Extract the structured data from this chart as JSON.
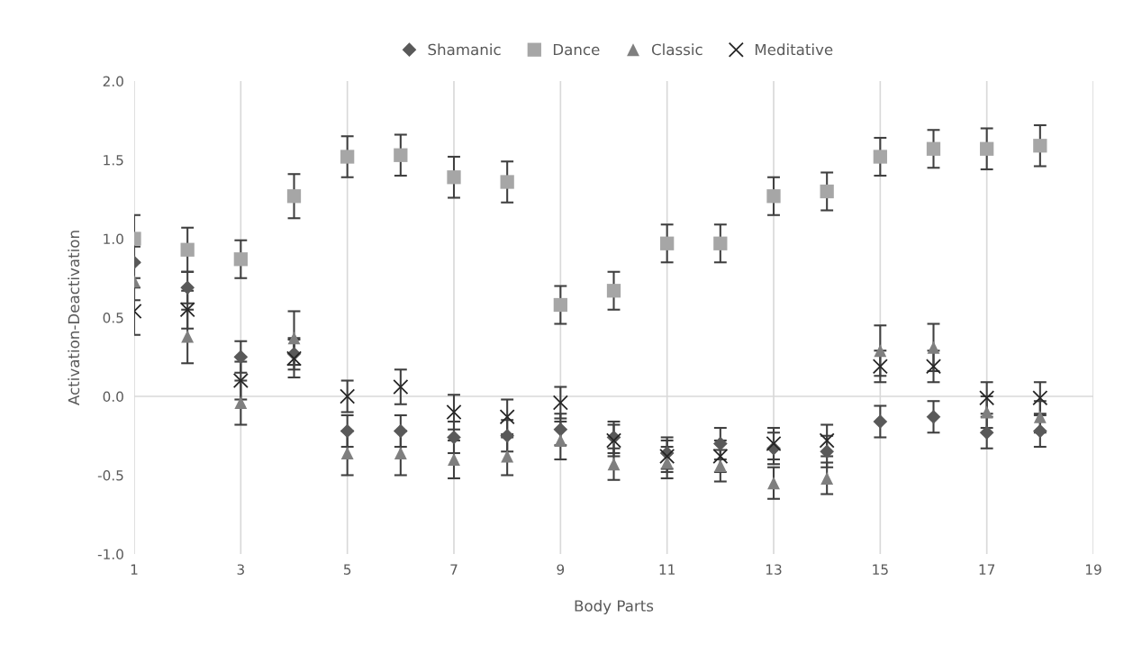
{
  "chart_data": {
    "type": "scatter",
    "xlabel": "Body Parts",
    "ylabel": "Activation-Deactivation",
    "x": [
      1,
      2,
      3,
      4,
      5,
      6,
      7,
      8,
      9,
      10,
      11,
      12,
      13,
      14,
      15,
      16,
      17,
      18
    ],
    "xlim": [
      1,
      19
    ],
    "xticks": [
      1,
      3,
      5,
      7,
      9,
      11,
      13,
      15,
      17,
      19
    ],
    "ylim": [
      -1.0,
      2.0
    ],
    "yticks": [
      {
        "value": -1.0,
        "label": "-1.0"
      },
      {
        "value": -0.5,
        "label": "-0.5"
      },
      {
        "value": 0.0,
        "label": "0.0"
      },
      {
        "value": 0.5,
        "label": "0.5"
      },
      {
        "value": 1.0,
        "label": "1.0"
      },
      {
        "value": 1.5,
        "label": "1.5"
      },
      {
        "value": 2.0,
        "label": "2.0"
      }
    ],
    "grid": "x",
    "legend": "top",
    "ref_lines": [
      {
        "axis": "y",
        "value": 0,
        "color": "#d9d9d9"
      }
    ],
    "series": [
      {
        "name": "Shamanic",
        "color": "#595959",
        "marker": "diamond",
        "values": [
          0.85,
          0.69,
          0.25,
          0.27,
          -0.22,
          -0.22,
          -0.26,
          -0.25,
          -0.21,
          -0.26,
          -0.36,
          -0.3,
          -0.33,
          -0.35,
          -0.16,
          -0.13,
          -0.23,
          -0.22
        ],
        "errors": [
          0.1,
          0.1,
          0.1,
          0.1,
          0.1,
          0.1,
          0.1,
          0.1,
          0.1,
          0.1,
          0.1,
          0.1,
          0.1,
          0.1,
          0.1,
          0.1,
          0.1,
          0.1
        ]
      },
      {
        "name": "Dance",
        "color": "#a6a6a6",
        "marker": "square",
        "values": [
          1.0,
          0.93,
          0.87,
          1.27,
          1.52,
          1.53,
          1.39,
          1.36,
          0.58,
          0.67,
          0.97,
          0.97,
          1.27,
          1.3,
          1.52,
          1.57,
          1.57,
          1.59
        ],
        "errors": [
          0.15,
          0.14,
          0.12,
          0.14,
          0.13,
          0.13,
          0.13,
          0.13,
          0.12,
          0.12,
          0.12,
          0.12,
          0.12,
          0.12,
          0.12,
          0.12,
          0.13,
          0.13
        ]
      },
      {
        "name": "Classic",
        "color": "#7f7f7f",
        "marker": "triangle",
        "values": [
          0.73,
          0.38,
          -0.04,
          0.37,
          -0.36,
          -0.36,
          -0.4,
          -0.38,
          -0.28,
          -0.43,
          -0.42,
          -0.44,
          -0.55,
          -0.52,
          0.29,
          0.31,
          -0.1,
          -0.13
        ],
        "errors": [
          0.12,
          0.17,
          0.14,
          0.17,
          0.14,
          0.14,
          0.12,
          0.12,
          0.12,
          0.1,
          0.1,
          0.1,
          0.1,
          0.1,
          0.16,
          0.15,
          0.1,
          0.1
        ]
      },
      {
        "name": "Meditative",
        "color": "#262626",
        "marker": "cross",
        "values": [
          0.54,
          0.55,
          0.1,
          0.24,
          0.0,
          0.06,
          -0.1,
          -0.13,
          -0.04,
          -0.28,
          -0.38,
          -0.38,
          -0.3,
          -0.28,
          0.19,
          0.19,
          -0.01,
          -0.01
        ],
        "errors": [
          0.15,
          0.12,
          0.12,
          0.12,
          0.1,
          0.11,
          0.11,
          0.11,
          0.1,
          0.1,
          0.1,
          0.1,
          0.1,
          0.1,
          0.1,
          0.1,
          0.1,
          0.1
        ]
      }
    ]
  }
}
